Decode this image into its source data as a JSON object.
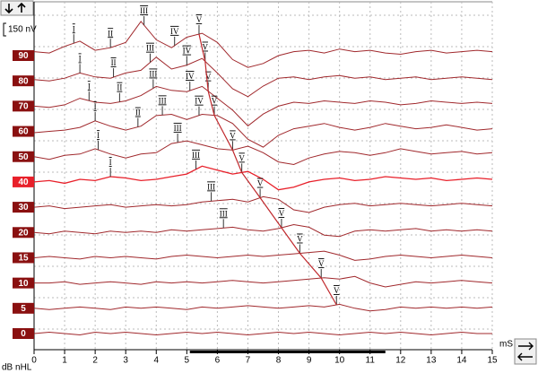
{
  "chart_data": {
    "type": "waveform-stack",
    "scale_label": "150 nV",
    "scale_nv": 150,
    "x_label": "mS",
    "level_label": "dB nHL",
    "x": [
      0,
      0.5,
      1,
      1.5,
      2,
      2.5,
      3,
      3.5,
      4,
      4.5,
      5,
      5.5,
      6,
      6.5,
      7,
      7.5,
      8,
      8.5,
      9,
      9.5,
      10,
      10.5,
      11,
      11.5,
      12,
      12.5,
      13,
      13.5,
      14,
      14.5,
      15
    ],
    "xlim": [
      0,
      15
    ],
    "xticks": [
      0,
      1,
      2,
      3,
      4,
      5,
      6,
      7,
      8,
      9,
      10,
      11,
      12,
      13,
      14,
      15
    ],
    "grid": true,
    "selected_index": 5,
    "color": "#a0282c",
    "selected_color": "#e8202a",
    "analysis_window": [
      5.1,
      11.5
    ],
    "series": [
      {
        "name": "90",
        "values": [
          30,
          20,
          70,
          110,
          40,
          60,
          100,
          260,
          120,
          60,
          140,
          170,
          100,
          -30,
          -90,
          -60,
          0,
          30,
          40,
          20,
          50,
          30,
          40,
          20,
          10,
          30,
          40,
          20,
          30,
          40,
          30
        ],
        "peaks": [
          {
            "label": "I",
            "x": 1.3
          },
          {
            "label": "II",
            "x": 2.5
          },
          {
            "label": "III",
            "x": 3.6
          },
          {
            "label": "IV",
            "x": 4.6
          },
          {
            "label": "V",
            "x": 5.4
          }
        ]
      },
      {
        "name": "80",
        "values": [
          10,
          0,
          20,
          60,
          30,
          20,
          60,
          80,
          180,
          90,
          120,
          170,
          60,
          -60,
          -120,
          -40,
          20,
          30,
          10,
          30,
          40,
          20,
          30,
          10,
          20,
          30,
          10,
          20,
          30,
          20,
          10
        ],
        "peaks": [
          {
            "label": "I",
            "x": 1.5
          },
          {
            "label": "II",
            "x": 2.6
          },
          {
            "label": "III",
            "x": 3.8
          },
          {
            "label": "IV",
            "x": 5.0
          },
          {
            "label": "V",
            "x": 5.6
          }
        ]
      },
      {
        "name": "70",
        "values": [
          0,
          -10,
          10,
          60,
          30,
          20,
          40,
          80,
          150,
          120,
          110,
          150,
          60,
          -30,
          -150,
          -60,
          0,
          30,
          20,
          40,
          30,
          20,
          40,
          30,
          10,
          20,
          40,
          30,
          20,
          30,
          20
        ],
        "peaks": [
          {
            "label": "I",
            "x": 1.8
          },
          {
            "label": "II",
            "x": 2.8
          },
          {
            "label": "III",
            "x": 3.9
          },
          {
            "label": "IV",
            "x": 5.1
          },
          {
            "label": "V",
            "x": 5.7
          }
        ]
      },
      {
        "name": "60",
        "values": [
          -10,
          0,
          10,
          30,
          80,
          40,
          10,
          40,
          120,
          130,
          90,
          130,
          120,
          60,
          -60,
          -120,
          -30,
          20,
          40,
          60,
          30,
          10,
          30,
          60,
          40,
          20,
          30,
          50,
          30,
          10,
          20
        ],
        "peaks": [
          {
            "label": "I",
            "x": 2.0
          },
          {
            "label": "II",
            "x": 3.4
          },
          {
            "label": "III",
            "x": 4.2
          },
          {
            "label": "IV",
            "x": 5.4
          },
          {
            "label": "V",
            "x": 5.9
          }
        ]
      },
      {
        "name": "50",
        "values": [
          0,
          -20,
          10,
          20,
          60,
          20,
          -10,
          20,
          30,
          100,
          120,
          90,
          60,
          50,
          80,
          30,
          -40,
          -60,
          -10,
          20,
          40,
          30,
          10,
          30,
          60,
          40,
          20,
          30,
          40,
          20,
          30
        ],
        "peaks": [
          {
            "label": "I",
            "x": 2.1
          },
          {
            "label": "III",
            "x": 4.7
          },
          {
            "label": "V",
            "x": 6.5
          }
        ]
      },
      {
        "name": "40",
        "values": [
          0,
          10,
          -10,
          20,
          10,
          40,
          30,
          10,
          20,
          40,
          60,
          120,
          90,
          60,
          80,
          20,
          -60,
          -40,
          0,
          20,
          30,
          10,
          20,
          40,
          30,
          20,
          30,
          10,
          20,
          30,
          20
        ],
        "peaks": [
          {
            "label": "I",
            "x": 2.5
          },
          {
            "label": "III",
            "x": 5.3
          },
          {
            "label": "V",
            "x": 6.8
          }
        ]
      },
      {
        "name": "30",
        "values": [
          0,
          10,
          -10,
          0,
          10,
          20,
          0,
          10,
          20,
          10,
          20,
          40,
          50,
          60,
          40,
          80,
          60,
          -20,
          -40,
          0,
          20,
          30,
          10,
          20,
          30,
          20,
          10,
          20,
          30,
          20,
          10
        ],
        "peaks": [
          {
            "label": "III",
            "x": 5.8
          },
          {
            "label": "V",
            "x": 7.4
          }
        ]
      },
      {
        "name": "20",
        "values": [
          0,
          -10,
          10,
          0,
          -10,
          10,
          0,
          10,
          0,
          20,
          10,
          20,
          30,
          40,
          20,
          10,
          30,
          60,
          40,
          -20,
          -30,
          10,
          20,
          10,
          20,
          30,
          10,
          20,
          10,
          20,
          10
        ],
        "peaks": [
          {
            "label": "III",
            "x": 6.2
          },
          {
            "label": "V",
            "x": 8.1
          }
        ]
      },
      {
        "name": "15",
        "values": [
          0,
          10,
          0,
          -10,
          10,
          0,
          10,
          0,
          -10,
          10,
          20,
          10,
          0,
          10,
          20,
          10,
          20,
          30,
          40,
          50,
          20,
          -20,
          -10,
          10,
          20,
          10,
          0,
          10,
          20,
          10,
          0
        ],
        "peaks": [
          {
            "label": "V",
            "x": 8.7
          }
        ]
      },
      {
        "name": "10",
        "values": [
          0,
          0,
          10,
          -10,
          0,
          10,
          0,
          -10,
          10,
          0,
          10,
          0,
          10,
          20,
          10,
          0,
          10,
          20,
          30,
          40,
          30,
          50,
          0,
          -30,
          -10,
          10,
          0,
          10,
          20,
          10,
          0
        ],
        "peaks": [
          {
            "label": "V",
            "x": 9.4
          }
        ]
      },
      {
        "name": "5",
        "values": [
          0,
          -10,
          0,
          10,
          0,
          -10,
          10,
          0,
          10,
          0,
          -10,
          10,
          0,
          10,
          20,
          10,
          0,
          10,
          20,
          10,
          30,
          0,
          -20,
          -10,
          10,
          0,
          10,
          0,
          10,
          0,
          10
        ],
        "peaks": [
          {
            "label": "V",
            "x": 9.9
          }
        ]
      },
      {
        "name": "0",
        "values": [
          0,
          10,
          0,
          -10,
          10,
          0,
          10,
          0,
          -10,
          0,
          10,
          0,
          10,
          0,
          -10,
          0,
          10,
          0,
          10,
          0,
          -10,
          0,
          10,
          0,
          10,
          0,
          -10,
          0,
          10,
          0,
          0
        ],
        "peaks": []
      }
    ]
  }
}
